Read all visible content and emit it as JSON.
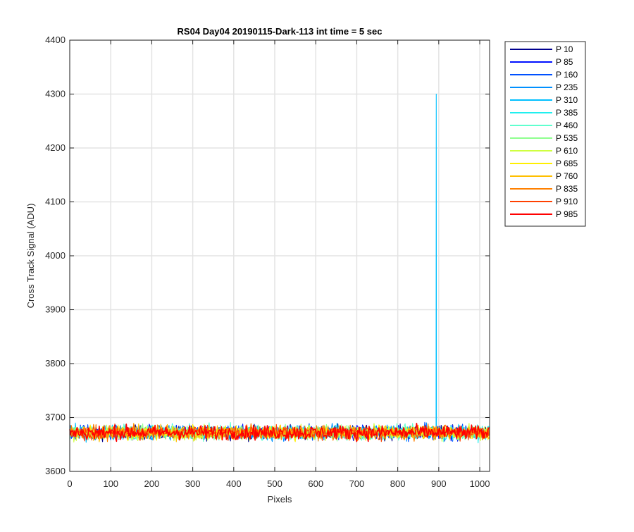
{
  "chart_data": {
    "type": "line",
    "title": "RS04 Day04 20190115-Dark-113 int time = 5 sec",
    "xlabel": "Pixels",
    "ylabel": "Cross Track Signal (ADU)",
    "xlim": [
      0,
      1024
    ],
    "ylim": [
      3600,
      4400
    ],
    "xticks": [
      "0",
      "100",
      "200",
      "300",
      "400",
      "500",
      "600",
      "700",
      "800",
      "900",
      "1000"
    ],
    "yticks": [
      "3600",
      "3700",
      "3800",
      "3900",
      "4000",
      "4100",
      "4200",
      "4300",
      "4400"
    ],
    "grid": true,
    "legend_position": "outside-top-right",
    "noise": {
      "mean": 3672,
      "range": [
        3645,
        3702
      ]
    },
    "series": [
      {
        "name": "P 10",
        "color": "#00008f"
      },
      {
        "name": "P 85",
        "color": "#0010ff"
      },
      {
        "name": "P 160",
        "color": "#0050ff"
      },
      {
        "name": "P 235",
        "color": "#0090ff"
      },
      {
        "name": "P 310",
        "color": "#00c0ff",
        "spike": {
          "x": 894,
          "y": 4300
        }
      },
      {
        "name": "P 385",
        "color": "#20efef"
      },
      {
        "name": "P 460",
        "color": "#60ffcf"
      },
      {
        "name": "P 535",
        "color": "#8fff8f"
      },
      {
        "name": "P 610",
        "color": "#cfff40"
      },
      {
        "name": "P 685",
        "color": "#ffef00"
      },
      {
        "name": "P 760",
        "color": "#ffbf00"
      },
      {
        "name": "P 835",
        "color": "#ff8000"
      },
      {
        "name": "P 910",
        "color": "#ff4000"
      },
      {
        "name": "P 985",
        "color": "#ff0000"
      }
    ]
  }
}
